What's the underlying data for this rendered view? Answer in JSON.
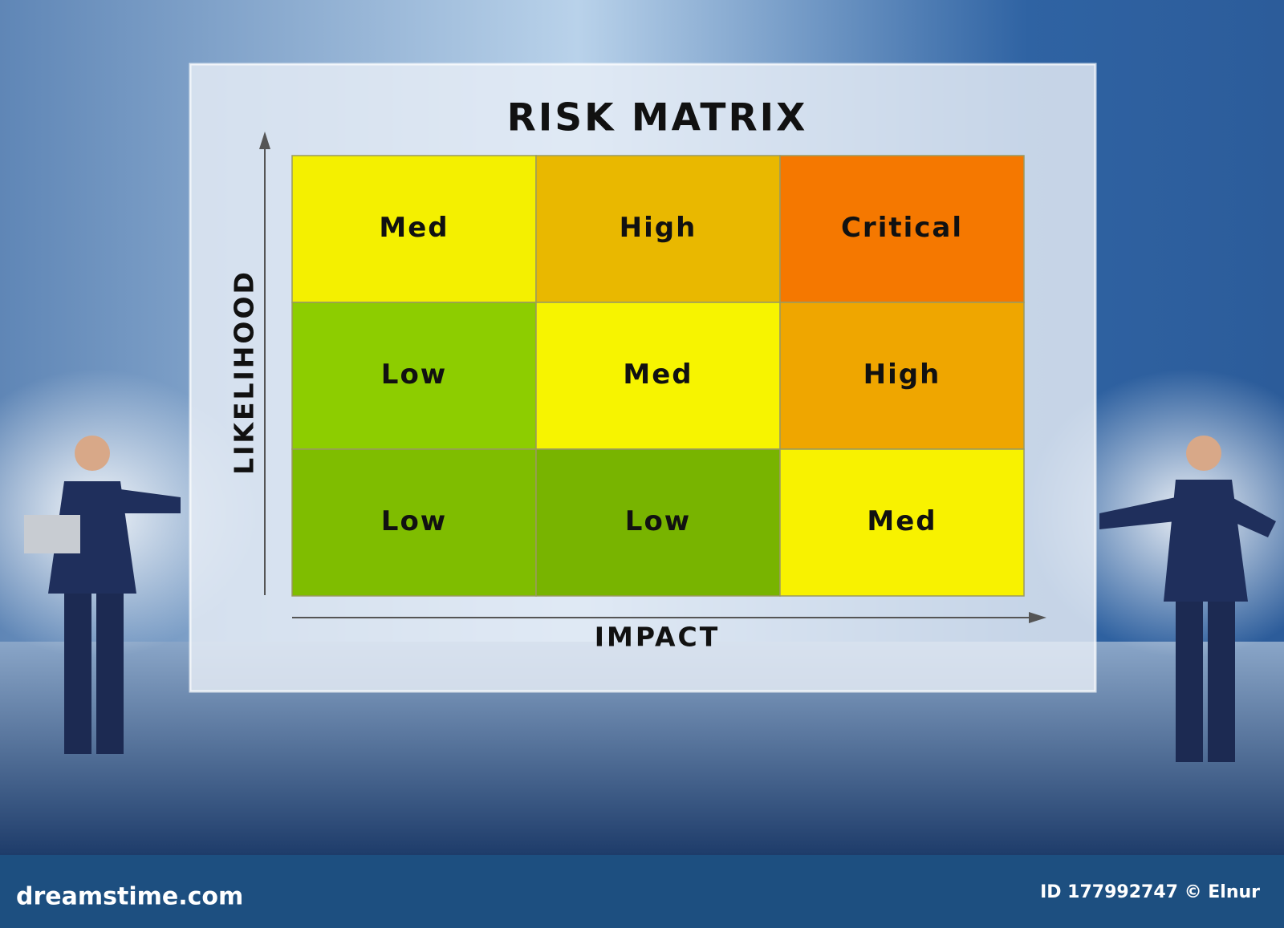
{
  "title": "RISK MATRIX",
  "y_label": "LIKELIHOOD",
  "x_label": "IMPACT",
  "matrix": {
    "rows": [
      [
        "Med",
        "High",
        "Critical"
      ],
      [
        "Low",
        "Med",
        "High"
      ],
      [
        "Low",
        "Low",
        "Med"
      ]
    ]
  },
  "footer": {
    "site": "dreamstime.com",
    "credit": "ID 177992747 © Elnur"
  }
}
